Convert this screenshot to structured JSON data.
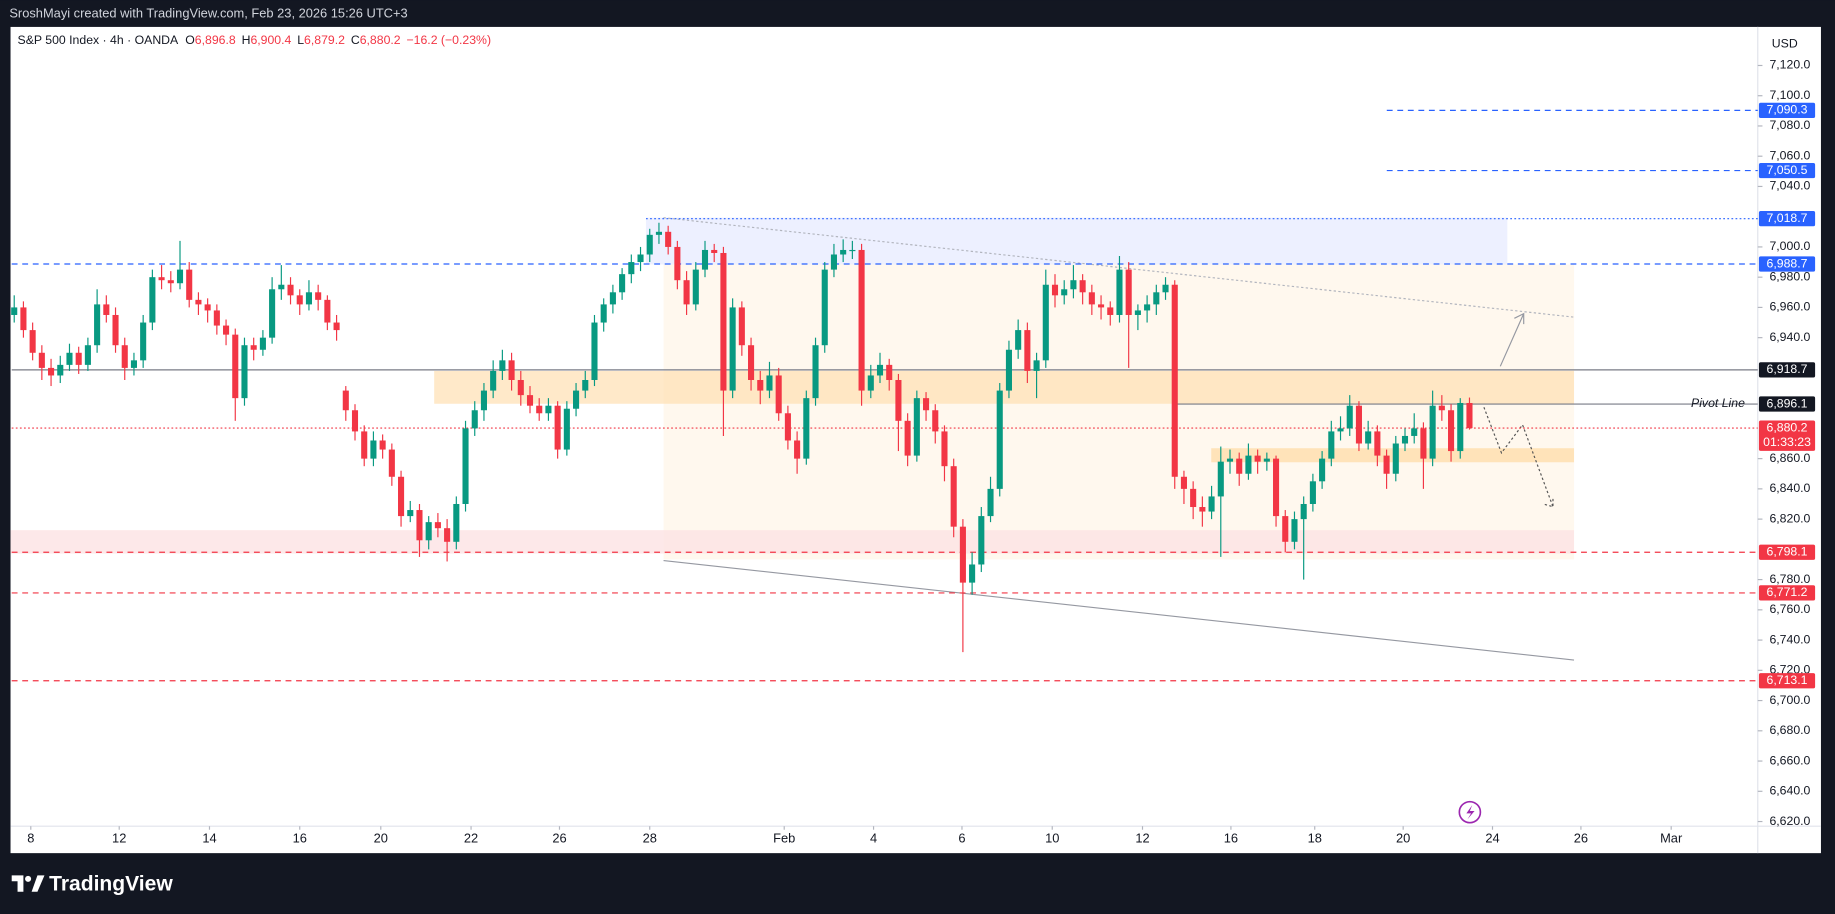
{
  "header": "SroshMayi created with TradingView.com, Feb 23, 2026 15:26 UTC+3",
  "logo": "TradingView",
  "chart_data": {
    "type": "candlestick",
    "title": "S&P 500 Index · 4h · OANDA",
    "legend": [
      {
        "key": "O",
        "text": "6,896.8"
      },
      {
        "key": "H",
        "text": "6,900.4"
      },
      {
        "key": "L",
        "text": "6,879.2"
      },
      {
        "key": "C",
        "text": "6,880.2"
      }
    ],
    "change": "−16.2 (−0.23%)",
    "currency": "USD",
    "annotations": [
      "Pivot Line"
    ],
    "up_color": "#089981",
    "down_color": "#f23645",
    "xlim": [
      -0.4,
      189.3
    ],
    "xticks": [
      {
        "value": 1.8,
        "label": "8"
      },
      {
        "value": 11.4,
        "label": "12"
      },
      {
        "value": 21.2,
        "label": "14"
      },
      {
        "value": 31.0,
        "label": "16"
      },
      {
        "value": 39.8,
        "label": "20"
      },
      {
        "value": 49.6,
        "label": "22"
      },
      {
        "value": 59.2,
        "label": "26"
      },
      {
        "value": 69.0,
        "label": "28"
      },
      {
        "value": 83.6,
        "label": "Feb"
      },
      {
        "value": 93.3,
        "label": "4"
      },
      {
        "value": 102.9,
        "label": "6"
      },
      {
        "value": 112.7,
        "label": "10"
      },
      {
        "value": 122.5,
        "label": "12"
      },
      {
        "value": 132.1,
        "label": "16"
      },
      {
        "value": 141.2,
        "label": "18"
      },
      {
        "value": 150.8,
        "label": "20"
      },
      {
        "value": 160.5,
        "label": "24"
      },
      {
        "value": 170.1,
        "label": "26"
      },
      {
        "value": 179.9,
        "label": "Mar"
      }
    ],
    "ylim": [
      6616.9,
      7145.5
    ],
    "yticks": [
      {
        "value": 7120,
        "label": "7,120.0"
      },
      {
        "value": 7100,
        "label": "7,100.0"
      },
      {
        "value": 7080,
        "label": "7,080.0"
      },
      {
        "value": 7060,
        "label": "7,060.0"
      },
      {
        "value": 7040,
        "label": "7,040.0"
      },
      {
        "value": 7000,
        "label": "7,000.0"
      },
      {
        "value": 6980,
        "label": "6,980.0"
      },
      {
        "value": 6960,
        "label": "6,960.0"
      },
      {
        "value": 6940,
        "label": "6,940.0"
      },
      {
        "value": 6860,
        "label": "6,860.0"
      },
      {
        "value": 6840,
        "label": "6,840.0"
      },
      {
        "value": 6820,
        "label": "6,820.0"
      },
      {
        "value": 6780,
        "label": "6,780.0"
      },
      {
        "value": 6760,
        "label": "6,760.0"
      },
      {
        "value": 6740,
        "label": "6,740.0"
      },
      {
        "value": 6720,
        "label": "6,720.0"
      },
      {
        "value": 6700,
        "label": "6,700.0"
      },
      {
        "value": 6680,
        "label": "6,680.0"
      },
      {
        "value": 6660,
        "label": "6,660.0"
      },
      {
        "value": 6640,
        "label": "6,640.0"
      },
      {
        "value": 6620,
        "label": "6,620.0"
      }
    ],
    "levels": [
      {
        "value": 7090.3,
        "label": "7,090.3",
        "color": "#2962ff",
        "style": "dashed"
      },
      {
        "value": 7050.5,
        "label": "7,050.5",
        "color": "#2962ff",
        "style": "dashed"
      },
      {
        "value": 7018.7,
        "label": "7,018.7",
        "color": "#2962ff",
        "style": "dotted"
      },
      {
        "value": 6988.7,
        "label": "6,988.7",
        "color": "#2962ff",
        "style": "dashed"
      },
      {
        "value": 6918.7,
        "label": "6,918.7",
        "color": "#131722",
        "style": "solid"
      },
      {
        "value": 6896.1,
        "label": "6,896.1",
        "color": "#131722",
        "style": "solid"
      },
      {
        "value": 6880.2,
        "label": "6,880.2",
        "color": "#f23645",
        "style": "dotted",
        "countdown": "01:33:23"
      },
      {
        "value": 6798.1,
        "label": "6,798.1",
        "color": "#f23645",
        "style": "dashed"
      },
      {
        "value": 6771.2,
        "label": "6,771.2",
        "color": "#f23645",
        "style": "dashed"
      },
      {
        "value": 6713.1,
        "label": "6,713.1",
        "color": "#f23645",
        "style": "dashed"
      }
    ],
    "ohlc": [
      [
        6955,
        6968,
        6950,
        6960
      ],
      [
        6960,
        6964,
        6940,
        6945
      ],
      [
        6945,
        6950,
        6925,
        6930
      ],
      [
        6930,
        6935,
        6912,
        6920
      ],
      [
        6920,
        6926,
        6908,
        6915
      ],
      [
        6915,
        6928,
        6910,
        6922
      ],
      [
        6922,
        6936,
        6918,
        6930
      ],
      [
        6930,
        6934,
        6916,
        6922
      ],
      [
        6922,
        6940,
        6918,
        6935
      ],
      [
        6935,
        6972,
        6930,
        6962
      ],
      [
        6962,
        6968,
        6950,
        6955
      ],
      [
        6955,
        6960,
        6930,
        6935
      ],
      [
        6935,
        6940,
        6912,
        6920
      ],
      [
        6920,
        6930,
        6915,
        6925
      ],
      [
        6925,
        6955,
        6920,
        6950
      ],
      [
        6950,
        6985,
        6945,
        6980
      ],
      [
        6980,
        6988,
        6972,
        6978
      ],
      [
        6978,
        6984,
        6970,
        6976
      ],
      [
        6976,
        7004,
        6972,
        6985
      ],
      [
        6985,
        6990,
        6960,
        6965
      ],
      [
        6965,
        6970,
        6955,
        6962
      ],
      [
        6962,
        6966,
        6950,
        6958
      ],
      [
        6958,
        6962,
        6942,
        6948
      ],
      [
        6948,
        6952,
        6935,
        6942
      ],
      [
        6942,
        6946,
        6885,
        6900
      ],
      [
        6900,
        6940,
        6895,
        6935
      ],
      [
        6935,
        6940,
        6925,
        6932
      ],
      [
        6932,
        6945,
        6928,
        6940
      ],
      [
        6940,
        6980,
        6936,
        6972
      ],
      [
        6972,
        6988,
        6965,
        6975
      ],
      [
        6975,
        6980,
        6962,
        6968
      ],
      [
        6968,
        6972,
        6955,
        6962
      ],
      [
        6962,
        6978,
        6958,
        6970
      ],
      [
        6970,
        6975,
        6958,
        6965
      ],
      [
        6965,
        6968,
        6945,
        6950
      ],
      [
        6950,
        6955,
        6938,
        6945
      ],
      [
        6905,
        6908,
        6885,
        6892
      ],
      [
        6892,
        6896,
        6872,
        6878
      ],
      [
        6878,
        6882,
        6855,
        6860
      ],
      [
        6860,
        6878,
        6855,
        6872
      ],
      [
        6872,
        6876,
        6860,
        6866
      ],
      [
        6866,
        6870,
        6842,
        6848
      ],
      [
        6848,
        6852,
        6815,
        6822
      ],
      [
        6822,
        6832,
        6818,
        6826
      ],
      [
        6826,
        6830,
        6795,
        6806
      ],
      [
        6806,
        6822,
        6800,
        6818
      ],
      [
        6818,
        6824,
        6808,
        6814
      ],
      [
        6814,
        6820,
        6792,
        6805
      ],
      [
        6805,
        6835,
        6800,
        6830
      ],
      [
        6830,
        6885,
        6825,
        6880
      ],
      [
        6880,
        6898,
        6875,
        6892
      ],
      [
        6892,
        6910,
        6885,
        6905
      ],
      [
        6905,
        6925,
        6900,
        6918
      ],
      [
        6918,
        6932,
        6912,
        6925
      ],
      [
        6925,
        6930,
        6905,
        6912
      ],
      [
        6912,
        6918,
        6895,
        6902
      ],
      [
        6902,
        6908,
        6890,
        6895
      ],
      [
        6895,
        6900,
        6885,
        6890
      ],
      [
        6890,
        6900,
        6885,
        6895
      ],
      [
        6895,
        6898,
        6860,
        6866
      ],
      [
        6866,
        6898,
        6862,
        6893
      ],
      [
        6893,
        6910,
        6888,
        6905
      ],
      [
        6905,
        6918,
        6900,
        6912
      ],
      [
        6912,
        6955,
        6908,
        6950
      ],
      [
        6950,
        6966,
        6944,
        6962
      ],
      [
        6962,
        6975,
        6956,
        6970
      ],
      [
        6970,
        6986,
        6965,
        6982
      ],
      [
        6982,
        6995,
        6976,
        6990
      ],
      [
        6990,
        7000,
        6984,
        6995
      ],
      [
        6995,
        7012,
        6990,
        7008
      ],
      [
        7008,
        7016,
        7002,
        7010
      ],
      [
        7010,
        7014,
        6995,
        7000
      ],
      [
        7000,
        7004,
        6972,
        6978
      ],
      [
        6978,
        6984,
        6955,
        6962
      ],
      [
        6962,
        6990,
        6958,
        6985
      ],
      [
        6985,
        7004,
        6980,
        6998
      ],
      [
        6998,
        7002,
        6990,
        6996
      ],
      [
        6996,
        7000,
        6875,
        6905
      ],
      [
        6905,
        6966,
        6900,
        6960
      ],
      [
        6960,
        6964,
        6928,
        6935
      ],
      [
        6935,
        6940,
        6905,
        6912
      ],
      [
        6912,
        6918,
        6896,
        6905
      ],
      [
        6905,
        6924,
        6900,
        6915
      ],
      [
        6915,
        6920,
        6885,
        6890
      ],
      [
        6890,
        6895,
        6866,
        6872
      ],
      [
        6872,
        6878,
        6850,
        6860
      ],
      [
        6860,
        6905,
        6856,
        6900
      ],
      [
        6900,
        6940,
        6895,
        6935
      ],
      [
        6935,
        6990,
        6930,
        6985
      ],
      [
        6985,
        7002,
        6980,
        6995
      ],
      [
        6995,
        7005,
        6990,
        6998
      ],
      [
        6998,
        7004,
        6992,
        6998
      ],
      [
        6998,
        7002,
        6895,
        6905
      ],
      [
        6905,
        6922,
        6900,
        6915
      ],
      [
        6915,
        6930,
        6910,
        6922
      ],
      [
        6922,
        6926,
        6905,
        6912
      ],
      [
        6912,
        6916,
        6865,
        6885
      ],
      [
        6885,
        6890,
        6855,
        6862
      ],
      [
        6862,
        6905,
        6858,
        6900
      ],
      [
        6900,
        6904,
        6885,
        6892
      ],
      [
        6892,
        6896,
        6870,
        6878
      ],
      [
        6878,
        6882,
        6845,
        6855
      ],
      [
        6855,
        6860,
        6808,
        6815
      ],
      [
        6815,
        6820,
        6732,
        6778
      ],
      [
        6778,
        6798,
        6770,
        6790
      ],
      [
        6790,
        6828,
        6785,
        6822
      ],
      [
        6822,
        6848,
        6818,
        6840
      ],
      [
        6840,
        6910,
        6835,
        6905
      ],
      [
        6905,
        6938,
        6900,
        6932
      ],
      [
        6932,
        6952,
        6926,
        6945
      ],
      [
        6945,
        6950,
        6910,
        6918
      ],
      [
        6918,
        6930,
        6900,
        6925
      ],
      [
        6925,
        6985,
        6920,
        6975
      ],
      [
        6975,
        6982,
        6960,
        6968
      ],
      [
        6968,
        6978,
        6962,
        6972
      ],
      [
        6972,
        6988,
        6966,
        6978
      ],
      [
        6978,
        6982,
        6962,
        6970
      ],
      [
        6970,
        6975,
        6955,
        6962
      ],
      [
        6962,
        6968,
        6952,
        6960
      ],
      [
        6960,
        6964,
        6948,
        6955
      ],
      [
        6955,
        6994,
        6950,
        6985
      ],
      [
        6985,
        6990,
        6920,
        6955
      ],
      [
        6955,
        6962,
        6945,
        6958
      ],
      [
        6958,
        6968,
        6950,
        6962
      ],
      [
        6962,
        6975,
        6955,
        6970
      ],
      [
        6970,
        6980,
        6965,
        6975
      ],
      [
        6975,
        6978,
        6840,
        6848
      ],
      [
        6848,
        6852,
        6830,
        6840
      ],
      [
        6840,
        6845,
        6820,
        6828
      ],
      [
        6828,
        6835,
        6815,
        6825
      ],
      [
        6825,
        6842,
        6820,
        6835
      ],
      [
        6835,
        6868,
        6795,
        6858
      ],
      [
        6858,
        6866,
        6850,
        6860
      ],
      [
        6860,
        6864,
        6842,
        6850
      ],
      [
        6850,
        6870,
        6846,
        6862
      ],
      [
        6862,
        6866,
        6850,
        6858
      ],
      [
        6858,
        6864,
        6852,
        6860
      ],
      [
        6860,
        6862,
        6815,
        6822
      ],
      [
        6822,
        6826,
        6798,
        6805
      ],
      [
        6805,
        6825,
        6800,
        6820
      ],
      [
        6820,
        6835,
        6780,
        6830
      ],
      [
        6830,
        6850,
        6825,
        6845
      ],
      [
        6845,
        6865,
        6840,
        6860
      ],
      [
        6860,
        6885,
        6855,
        6878
      ],
      [
        6878,
        6888,
        6872,
        6880
      ],
      [
        6880,
        6902,
        6875,
        6895
      ],
      [
        6895,
        6898,
        6865,
        6870
      ],
      [
        6870,
        6885,
        6866,
        6878
      ],
      [
        6878,
        6882,
        6855,
        6862
      ],
      [
        6862,
        6866,
        6840,
        6850
      ],
      [
        6850,
        6875,
        6845,
        6870
      ],
      [
        6870,
        6880,
        6865,
        6875
      ],
      [
        6875,
        6890,
        6870,
        6880
      ],
      [
        6880,
        6884,
        6840,
        6860
      ],
      [
        6860,
        6905,
        6855,
        6895
      ],
      [
        6895,
        6902,
        6885,
        6892
      ],
      [
        6892,
        6896,
        6858,
        6865
      ],
      [
        6865,
        6900,
        6860,
        6896.8
      ],
      [
        6896.8,
        6900.4,
        6879.2,
        6880.2
      ]
    ]
  }
}
